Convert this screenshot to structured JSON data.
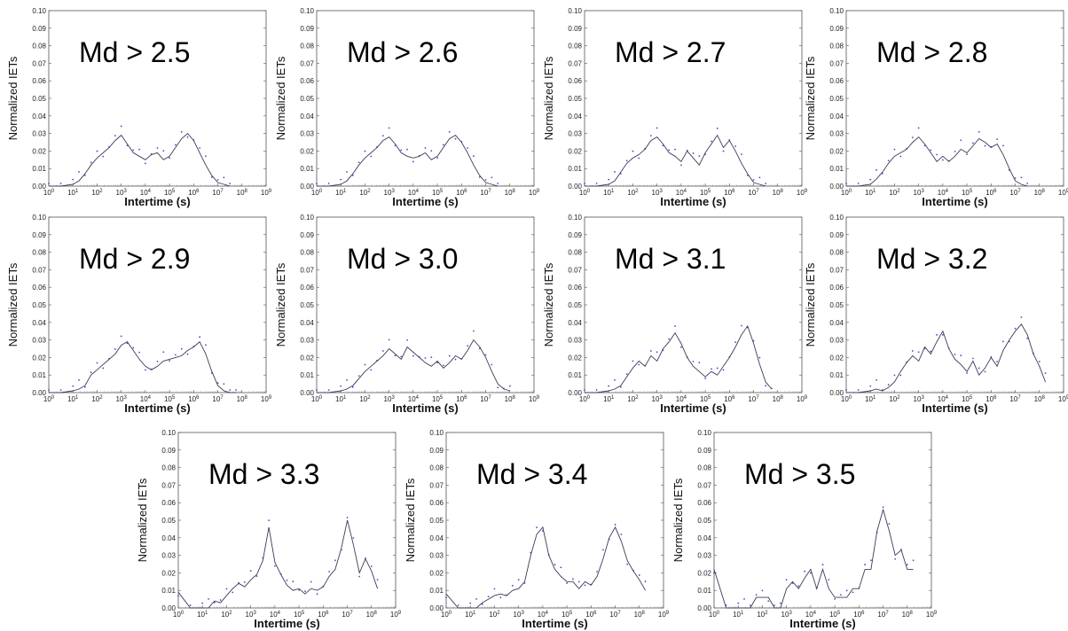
{
  "chart_data": [
    {
      "type": "line",
      "title": "Md > 2.5",
      "ylabel": "Normalized IETs",
      "xlabel": "Intertime (s)",
      "log_x": true,
      "xlim": [
        0,
        9
      ],
      "ylim": [
        0,
        0.1
      ],
      "x": [
        0,
        0.5,
        1,
        1.25,
        1.5,
        1.75,
        2,
        2.25,
        2.5,
        2.75,
        3,
        3.25,
        3.5,
        3.75,
        4,
        4.25,
        4.5,
        4.75,
        5,
        5.25,
        5.5,
        5.75,
        6,
        6.25,
        6.5,
        6.75,
        7,
        7.25,
        7.5
      ],
      "series": [
        {
          "values": [
            0,
            0,
            0.001,
            0.003,
            0.007,
            0.012,
            0.016,
            0.019,
            0.022,
            0.026,
            0.029,
            0.024,
            0.019,
            0.017,
            0.015,
            0.018,
            0.019,
            0.015,
            0.017,
            0.022,
            0.027,
            0.03,
            0.026,
            0.019,
            0.012,
            0.006,
            0.002,
            0.001,
            0
          ]
        }
      ]
    },
    {
      "type": "line",
      "title": "Md > 2.6",
      "ylabel": "Normalized IETs",
      "xlabel": "Intertime (s)",
      "log_x": true,
      "xlim": [
        0,
        9
      ],
      "ylim": [
        0,
        0.1
      ],
      "x": [
        0,
        0.5,
        1,
        1.25,
        1.5,
        1.75,
        2,
        2.25,
        2.5,
        2.75,
        3,
        3.25,
        3.5,
        3.75,
        4,
        4.25,
        4.5,
        4.75,
        5,
        5.25,
        5.5,
        5.75,
        6,
        6.25,
        6.5,
        6.75,
        7,
        7.25,
        7.5
      ],
      "series": [
        {
          "values": [
            0,
            0,
            0.001,
            0.003,
            0.007,
            0.012,
            0.016,
            0.019,
            0.022,
            0.026,
            0.028,
            0.024,
            0.019,
            0.017,
            0.016,
            0.017,
            0.019,
            0.015,
            0.017,
            0.022,
            0.027,
            0.029,
            0.025,
            0.019,
            0.012,
            0.006,
            0.002,
            0.001,
            0
          ]
        }
      ]
    },
    {
      "type": "line",
      "title": "Md > 2.7",
      "ylabel": "Normalized IETs",
      "xlabel": "Intertime (s)",
      "log_x": true,
      "xlim": [
        0,
        9
      ],
      "ylim": [
        0,
        0.1
      ],
      "x": [
        0,
        0.5,
        1,
        1.25,
        1.5,
        1.75,
        2,
        2.25,
        2.5,
        2.75,
        3,
        3.25,
        3.5,
        3.75,
        4,
        4.25,
        4.5,
        4.75,
        5,
        5.25,
        5.5,
        5.75,
        6,
        6.25,
        6.5,
        6.75,
        7,
        7.25,
        7.5
      ],
      "series": [
        {
          "values": [
            0,
            0,
            0.001,
            0.003,
            0.008,
            0.013,
            0.016,
            0.018,
            0.021,
            0.026,
            0.028,
            0.024,
            0.019,
            0.017,
            0.014,
            0.02,
            0.016,
            0.012,
            0.019,
            0.024,
            0.029,
            0.022,
            0.026,
            0.02,
            0.013,
            0.007,
            0.002,
            0.001,
            0
          ]
        }
      ]
    },
    {
      "type": "line",
      "title": "Md > 2.8",
      "ylabel": "Normalized IETs",
      "xlabel": "Intertime (s)",
      "log_x": true,
      "xlim": [
        0,
        9
      ],
      "ylim": [
        0,
        0.1
      ],
      "x": [
        0,
        0.5,
        1,
        1.25,
        1.5,
        1.75,
        2,
        2.25,
        2.5,
        2.75,
        3,
        3.25,
        3.5,
        3.75,
        4,
        4.25,
        4.5,
        4.75,
        5,
        5.25,
        5.5,
        5.75,
        6,
        6.25,
        6.5,
        6.75,
        7,
        7.25,
        7.5
      ],
      "series": [
        {
          "values": [
            0,
            0,
            0.001,
            0.004,
            0.008,
            0.013,
            0.017,
            0.019,
            0.021,
            0.025,
            0.028,
            0.024,
            0.019,
            0.014,
            0.017,
            0.014,
            0.017,
            0.021,
            0.019,
            0.023,
            0.027,
            0.025,
            0.022,
            0.024,
            0.018,
            0.01,
            0.003,
            0.001,
            0
          ]
        }
      ]
    },
    {
      "type": "line",
      "title": "Md > 2.9",
      "ylabel": "Normalized IETs",
      "xlabel": "Intertime (s)",
      "log_x": true,
      "xlim": [
        0,
        9
      ],
      "ylim": [
        0,
        0.1
      ],
      "x": [
        0,
        0.5,
        1,
        1.25,
        1.5,
        1.75,
        2,
        2.25,
        2.5,
        2.75,
        3,
        3.25,
        3.5,
        3.75,
        4,
        4.25,
        4.5,
        4.75,
        5,
        5.25,
        5.5,
        5.75,
        6,
        6.25,
        6.5,
        6.75,
        7,
        7.25,
        7.5,
        7.75
      ],
      "series": [
        {
          "values": [
            0,
            0,
            0.001,
            0.002,
            0.004,
            0.01,
            0.013,
            0.016,
            0.019,
            0.022,
            0.027,
            0.029,
            0.024,
            0.019,
            0.015,
            0.013,
            0.015,
            0.018,
            0.019,
            0.02,
            0.021,
            0.024,
            0.026,
            0.029,
            0.022,
            0.012,
            0.004,
            0.001,
            0,
            0
          ]
        }
      ]
    },
    {
      "type": "line",
      "title": "Md > 3.0",
      "ylabel": "Normalized IETs",
      "xlabel": "Intertime (s)",
      "log_x": true,
      "xlim": [
        0,
        9
      ],
      "ylim": [
        0,
        0.1
      ],
      "x": [
        0,
        0.5,
        1,
        1.25,
        1.5,
        1.75,
        2,
        2.25,
        2.5,
        2.75,
        3,
        3.25,
        3.5,
        3.75,
        4,
        4.25,
        4.5,
        4.75,
        5,
        5.25,
        5.5,
        5.75,
        6,
        6.25,
        6.5,
        6.75,
        7,
        7.25,
        7.5,
        7.75,
        8
      ],
      "series": [
        {
          "values": [
            0,
            0,
            0.001,
            0.002,
            0.004,
            0.008,
            0.012,
            0.015,
            0.018,
            0.021,
            0.025,
            0.022,
            0.019,
            0.026,
            0.023,
            0.02,
            0.017,
            0.015,
            0.018,
            0.014,
            0.017,
            0.021,
            0.019,
            0.024,
            0.03,
            0.026,
            0.02,
            0.012,
            0.005,
            0.002,
            0.001
          ]
        }
      ]
    },
    {
      "type": "line",
      "title": "Md > 3.1",
      "ylabel": "Normalized IETs",
      "xlabel": "Intertime (s)",
      "log_x": true,
      "xlim": [
        0,
        9
      ],
      "ylim": [
        0,
        0.1
      ],
      "x": [
        0,
        0.5,
        1,
        1.25,
        1.5,
        1.75,
        2,
        2.25,
        2.5,
        2.75,
        3,
        3.25,
        3.5,
        3.75,
        4,
        4.25,
        4.5,
        4.75,
        5,
        5.25,
        5.5,
        5.75,
        6,
        6.25,
        6.5,
        6.75,
        7,
        7.25,
        7.5,
        7.75
      ],
      "series": [
        {
          "values": [
            0,
            0,
            0.001,
            0.002,
            0.004,
            0.009,
            0.014,
            0.018,
            0.015,
            0.021,
            0.018,
            0.025,
            0.029,
            0.034,
            0.028,
            0.02,
            0.015,
            0.012,
            0.009,
            0.012,
            0.01,
            0.015,
            0.02,
            0.026,
            0.033,
            0.038,
            0.028,
            0.016,
            0.006,
            0.002
          ]
        }
      ]
    },
    {
      "type": "line",
      "title": "Md > 3.2",
      "ylabel": "Normalized IETs",
      "xlabel": "Intertime (s)",
      "log_x": true,
      "xlim": [
        0,
        9
      ],
      "ylim": [
        0,
        0.1
      ],
      "x": [
        0,
        0.5,
        1,
        1.25,
        1.5,
        1.75,
        2,
        2.25,
        2.5,
        2.75,
        3,
        3.25,
        3.5,
        3.75,
        4,
        4.25,
        4.5,
        4.75,
        5,
        5.25,
        5.5,
        5.75,
        6,
        6.25,
        6.5,
        6.75,
        7,
        7.25,
        7.5,
        7.75,
        8,
        8.25
      ],
      "series": [
        {
          "values": [
            0,
            0,
            0.001,
            0.002,
            0.001,
            0.003,
            0.006,
            0.012,
            0.017,
            0.021,
            0.018,
            0.026,
            0.022,
            0.029,
            0.035,
            0.025,
            0.019,
            0.016,
            0.012,
            0.018,
            0.01,
            0.014,
            0.02,
            0.015,
            0.024,
            0.03,
            0.035,
            0.039,
            0.033,
            0.022,
            0.015,
            0.006
          ]
        }
      ]
    },
    {
      "type": "line",
      "title": "Md > 3.3",
      "ylabel": "Normalized IETs",
      "xlabel": "Intertime (s)",
      "log_x": true,
      "xlim": [
        0,
        9
      ],
      "ylim": [
        0,
        0.1
      ],
      "x": [
        0,
        0.5,
        1,
        1.25,
        1.5,
        1.75,
        2,
        2.25,
        2.5,
        2.75,
        3,
        3.25,
        3.5,
        3.75,
        4,
        4.25,
        4.5,
        4.75,
        5,
        5.25,
        5.5,
        5.75,
        6,
        6.25,
        6.5,
        6.75,
        7,
        7.25,
        7.5,
        7.75,
        8,
        8.25
      ],
      "series": [
        {
          "values": [
            0.009,
            0,
            0,
            0,
            0.004,
            0.003,
            0.007,
            0.011,
            0.014,
            0.012,
            0.016,
            0.019,
            0.027,
            0.046,
            0.026,
            0.019,
            0.013,
            0.01,
            0.011,
            0.008,
            0.011,
            0.01,
            0.012,
            0.018,
            0.022,
            0.034,
            0.05,
            0.036,
            0.02,
            0.028,
            0.021,
            0.011
          ]
        }
      ]
    },
    {
      "type": "line",
      "title": "Md > 3.4",
      "ylabel": "Normalized IETs",
      "xlabel": "Intertime (s)",
      "log_x": true,
      "xlim": [
        0,
        9
      ],
      "ylim": [
        0,
        0.1
      ],
      "x": [
        0,
        0.5,
        1,
        1.25,
        1.5,
        1.75,
        2,
        2.25,
        2.5,
        2.75,
        3,
        3.25,
        3.5,
        3.75,
        4,
        4.25,
        4.5,
        4.75,
        5,
        5.25,
        5.5,
        5.75,
        6,
        6.25,
        6.5,
        6.75,
        7,
        7.25,
        7.5,
        7.75,
        8,
        8.25
      ],
      "series": [
        {
          "values": [
            0.008,
            0,
            0,
            0,
            0.003,
            0.005,
            0.007,
            0.008,
            0.007,
            0.01,
            0.011,
            0.015,
            0.03,
            0.042,
            0.046,
            0.03,
            0.022,
            0.018,
            0.015,
            0.015,
            0.011,
            0.015,
            0.013,
            0.018,
            0.028,
            0.04,
            0.046,
            0.038,
            0.027,
            0.021,
            0.016,
            0.01
          ]
        }
      ]
    },
    {
      "type": "line",
      "title": "Md > 3.5",
      "ylabel": "Normalized IETs",
      "xlabel": "Intertime (s)",
      "log_x": true,
      "xlim": [
        0,
        9
      ],
      "ylim": [
        0,
        0.1
      ],
      "x": [
        0,
        0.5,
        1,
        1.25,
        1.5,
        1.75,
        2,
        2.25,
        2.5,
        2.75,
        3,
        3.25,
        3.5,
        3.75,
        4,
        4.25,
        4.5,
        4.75,
        5,
        5.25,
        5.5,
        5.75,
        6,
        6.25,
        6.5,
        6.75,
        7,
        7.25,
        7.5,
        7.75,
        8,
        8.25
      ],
      "series": [
        {
          "values": [
            0.022,
            0,
            0,
            0,
            0,
            0.006,
            0.006,
            0.006,
            0,
            0,
            0.011,
            0.015,
            0.011,
            0.017,
            0.022,
            0.011,
            0.022,
            0.011,
            0.006,
            0.006,
            0.006,
            0.011,
            0.011,
            0.022,
            0.022,
            0.044,
            0.056,
            0.044,
            0.03,
            0.033,
            0.022,
            0.022
          ]
        }
      ]
    }
  ]
}
